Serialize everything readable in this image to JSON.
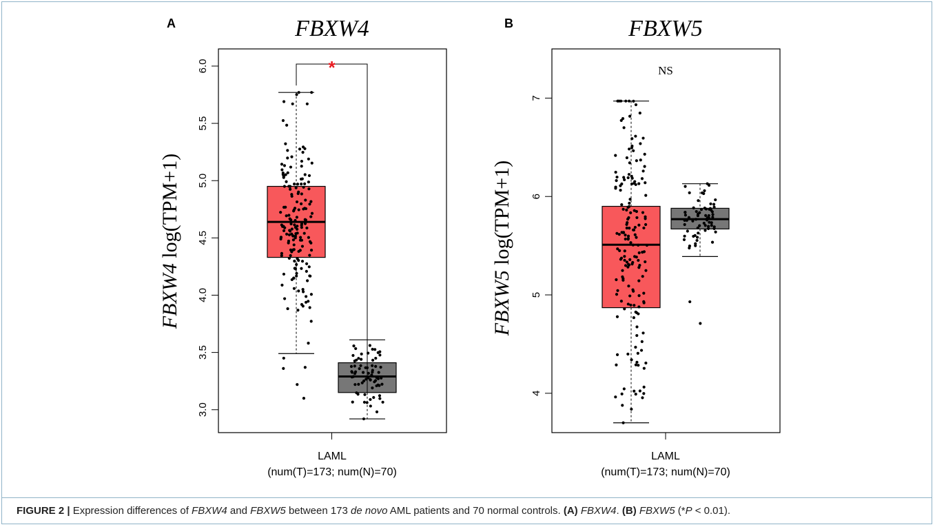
{
  "figure": {
    "caption": {
      "label": "FIGURE 2 |",
      "t1": " Expression differences of ",
      "g1": "FBXW4",
      "t2": " and ",
      "g2": "FBXW5",
      "t3": " between 173 ",
      "denovo": "de novo",
      "t4": " AML patients and 70 normal controls. ",
      "pa": "(A)",
      "t5": " ",
      "ga": "FBXW4",
      "t6": ". ",
      "pb": "(B)",
      "t7": " ",
      "gb": "FBXW5",
      "t8": " (*",
      "p": "P",
      "t9": " < 0.01)."
    }
  },
  "chart_data": [
    {
      "type": "box",
      "panel": "A",
      "title": "FBXW4",
      "ylabel_gene": "FBXW4",
      "ylabel_rest": " log(TPM+1)",
      "xlabel": "LAML",
      "xsublabel": "(num(T)=173; num(N)=70)",
      "ylim": [
        2.8,
        6.15
      ],
      "yticks": [
        "3.0",
        "3.5",
        "4.0",
        "4.5",
        "5.0",
        "5.5",
        "6.0"
      ],
      "significance": "*",
      "groups": [
        {
          "name": "T",
          "n": 173,
          "color": "#f8585b",
          "min": 3.49,
          "q1": 4.33,
          "median": 4.64,
          "q3": 4.95,
          "max": 5.77,
          "outliers": [
            3.1,
            3.22,
            3.36,
            3.37,
            3.45,
            5.77,
            5.69,
            5.67
          ]
        },
        {
          "name": "N",
          "n": 70,
          "color": "#777777",
          "min": 2.92,
          "q1": 3.15,
          "median": 3.29,
          "q3": 3.41,
          "max": 3.61,
          "outliers": []
        }
      ]
    },
    {
      "type": "box",
      "panel": "B",
      "title": "FBXW5",
      "ylabel_gene": "FBXW5",
      "ylabel_rest": " log(TPM+1)",
      "xlabel": "LAML",
      "xsublabel": "(num(T)=173; num(N)=70)",
      "ylim": [
        3.6,
        7.5
      ],
      "yticks": [
        "4",
        "5",
        "6",
        "7"
      ],
      "significance": "NS",
      "groups": [
        {
          "name": "T",
          "n": 173,
          "color": "#f8585b",
          "min": 3.7,
          "q1": 4.87,
          "median": 5.51,
          "q3": 5.9,
          "max": 6.97,
          "outliers": []
        },
        {
          "name": "N",
          "n": 70,
          "color": "#777777",
          "min": 5.39,
          "q1": 5.67,
          "median": 5.77,
          "q3": 5.88,
          "max": 6.13,
          "outliers": [
            4.93,
            4.71
          ]
        }
      ]
    }
  ]
}
